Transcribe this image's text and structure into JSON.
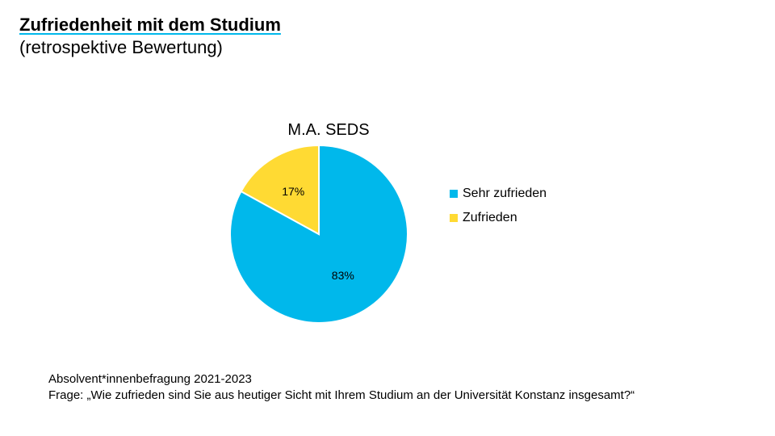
{
  "header": {
    "title": "Zufriedenheit mit dem Studium",
    "subtitle": "(retrospektive Bewertung)"
  },
  "chart": {
    "type": "pie",
    "title": "M.A. SEDS",
    "background_color": "#ffffff",
    "radius": 110,
    "start_angle_deg": -90,
    "slices": [
      {
        "label": "Sehr zufrieden",
        "value": 83,
        "color": "#00b8eb",
        "display": "83%"
      },
      {
        "label": "Zufrieden",
        "value": 17,
        "color": "#ffda33",
        "display": "17%"
      }
    ],
    "slice_border": {
      "color": "#ffffff",
      "width": 2
    },
    "label_fontsize": 14,
    "title_fontsize": 20
  },
  "legend": {
    "fontsize": 16,
    "items": [
      {
        "text": "Sehr zufrieden",
        "color": "#00b8eb"
      },
      {
        "text": "Zufrieden",
        "color": "#ffda33"
      }
    ]
  },
  "footer": {
    "line1": "Absolvent*innenbefragung 2021-2023",
    "line2": "Frage: „Wie zufrieden sind Sie aus heutiger Sicht mit Ihrem Studium an der Universität Konstanz insgesamt?“"
  }
}
